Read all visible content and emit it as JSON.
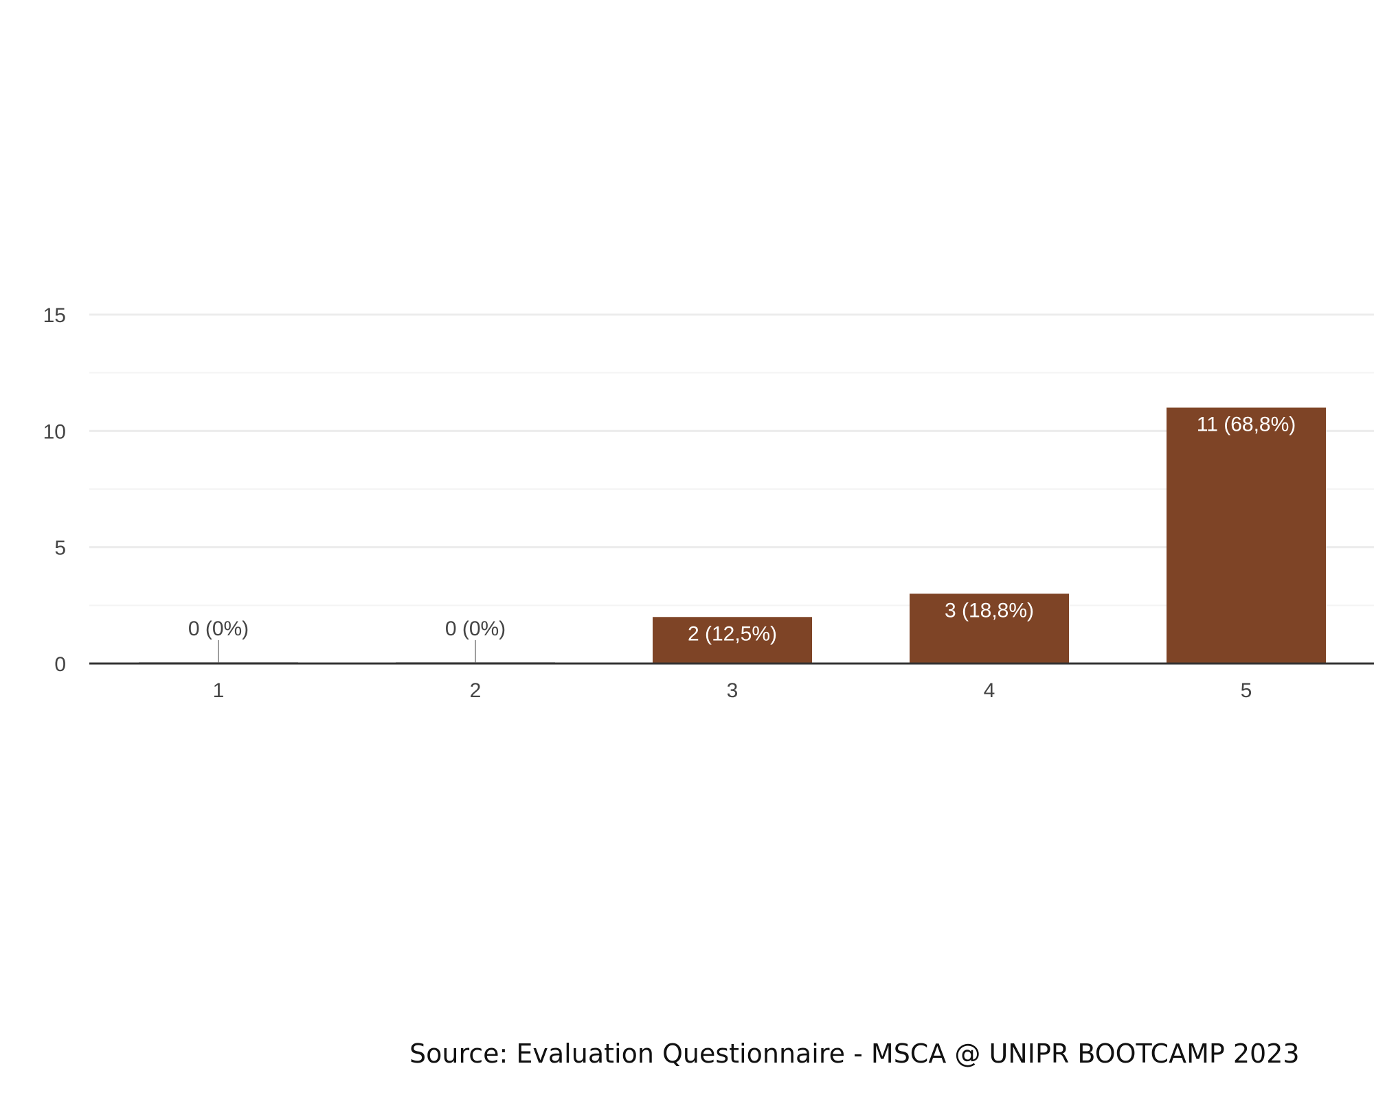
{
  "chart_data": {
    "type": "bar",
    "categories": [
      "1",
      "2",
      "3",
      "4",
      "5"
    ],
    "values": [
      0,
      0,
      2,
      3,
      11
    ],
    "data_labels": [
      "0 (0%)",
      "0 (0%)",
      "2 (12,5%)",
      "3 (18,8%)",
      "11 (68,8%)"
    ],
    "ylim": [
      0,
      15
    ],
    "yticks": [
      0,
      5,
      10,
      15
    ],
    "minor_gridlines": true,
    "grid": true,
    "legend": "none",
    "bar_color": "#7E4426",
    "gridline_color": "#ECECEC",
    "axis_color": "#333333"
  },
  "source": "Source: Evaluation Questionnaire - MSCA @ UNIPR BOOTCAMP 2023"
}
